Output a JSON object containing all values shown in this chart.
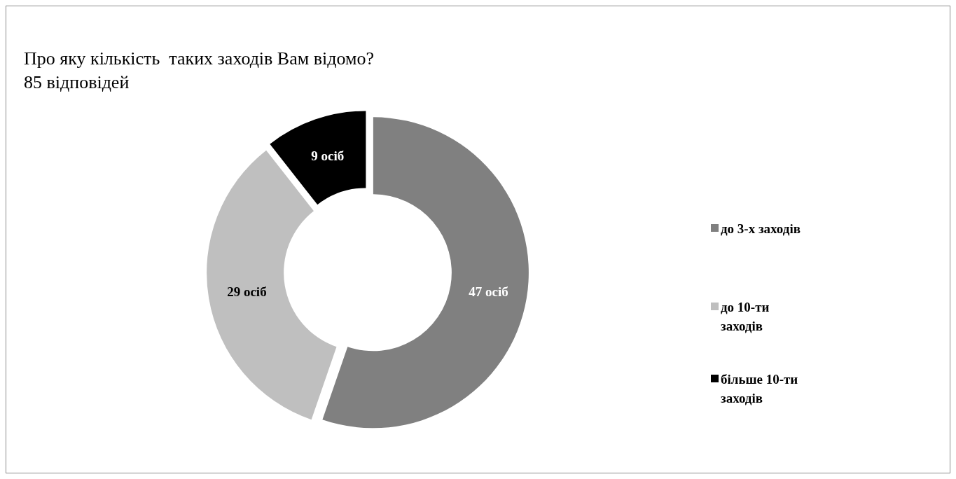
{
  "chart_data": {
    "type": "donut",
    "title": "Про яку кількість  таких заходів Вам відомо?",
    "subtitle": "85 відповідей",
    "categories": [
      "до 3-х заходів",
      "до 10-ти заходів",
      "більше 10-ти заходів"
    ],
    "values": [
      47,
      29,
      9
    ],
    "colors": [
      "#808080",
      "#bfbfbf",
      "#000000"
    ],
    "value_labels": [
      "47 осіб",
      "29 осіб",
      "9 осіб"
    ],
    "legend": "right"
  }
}
